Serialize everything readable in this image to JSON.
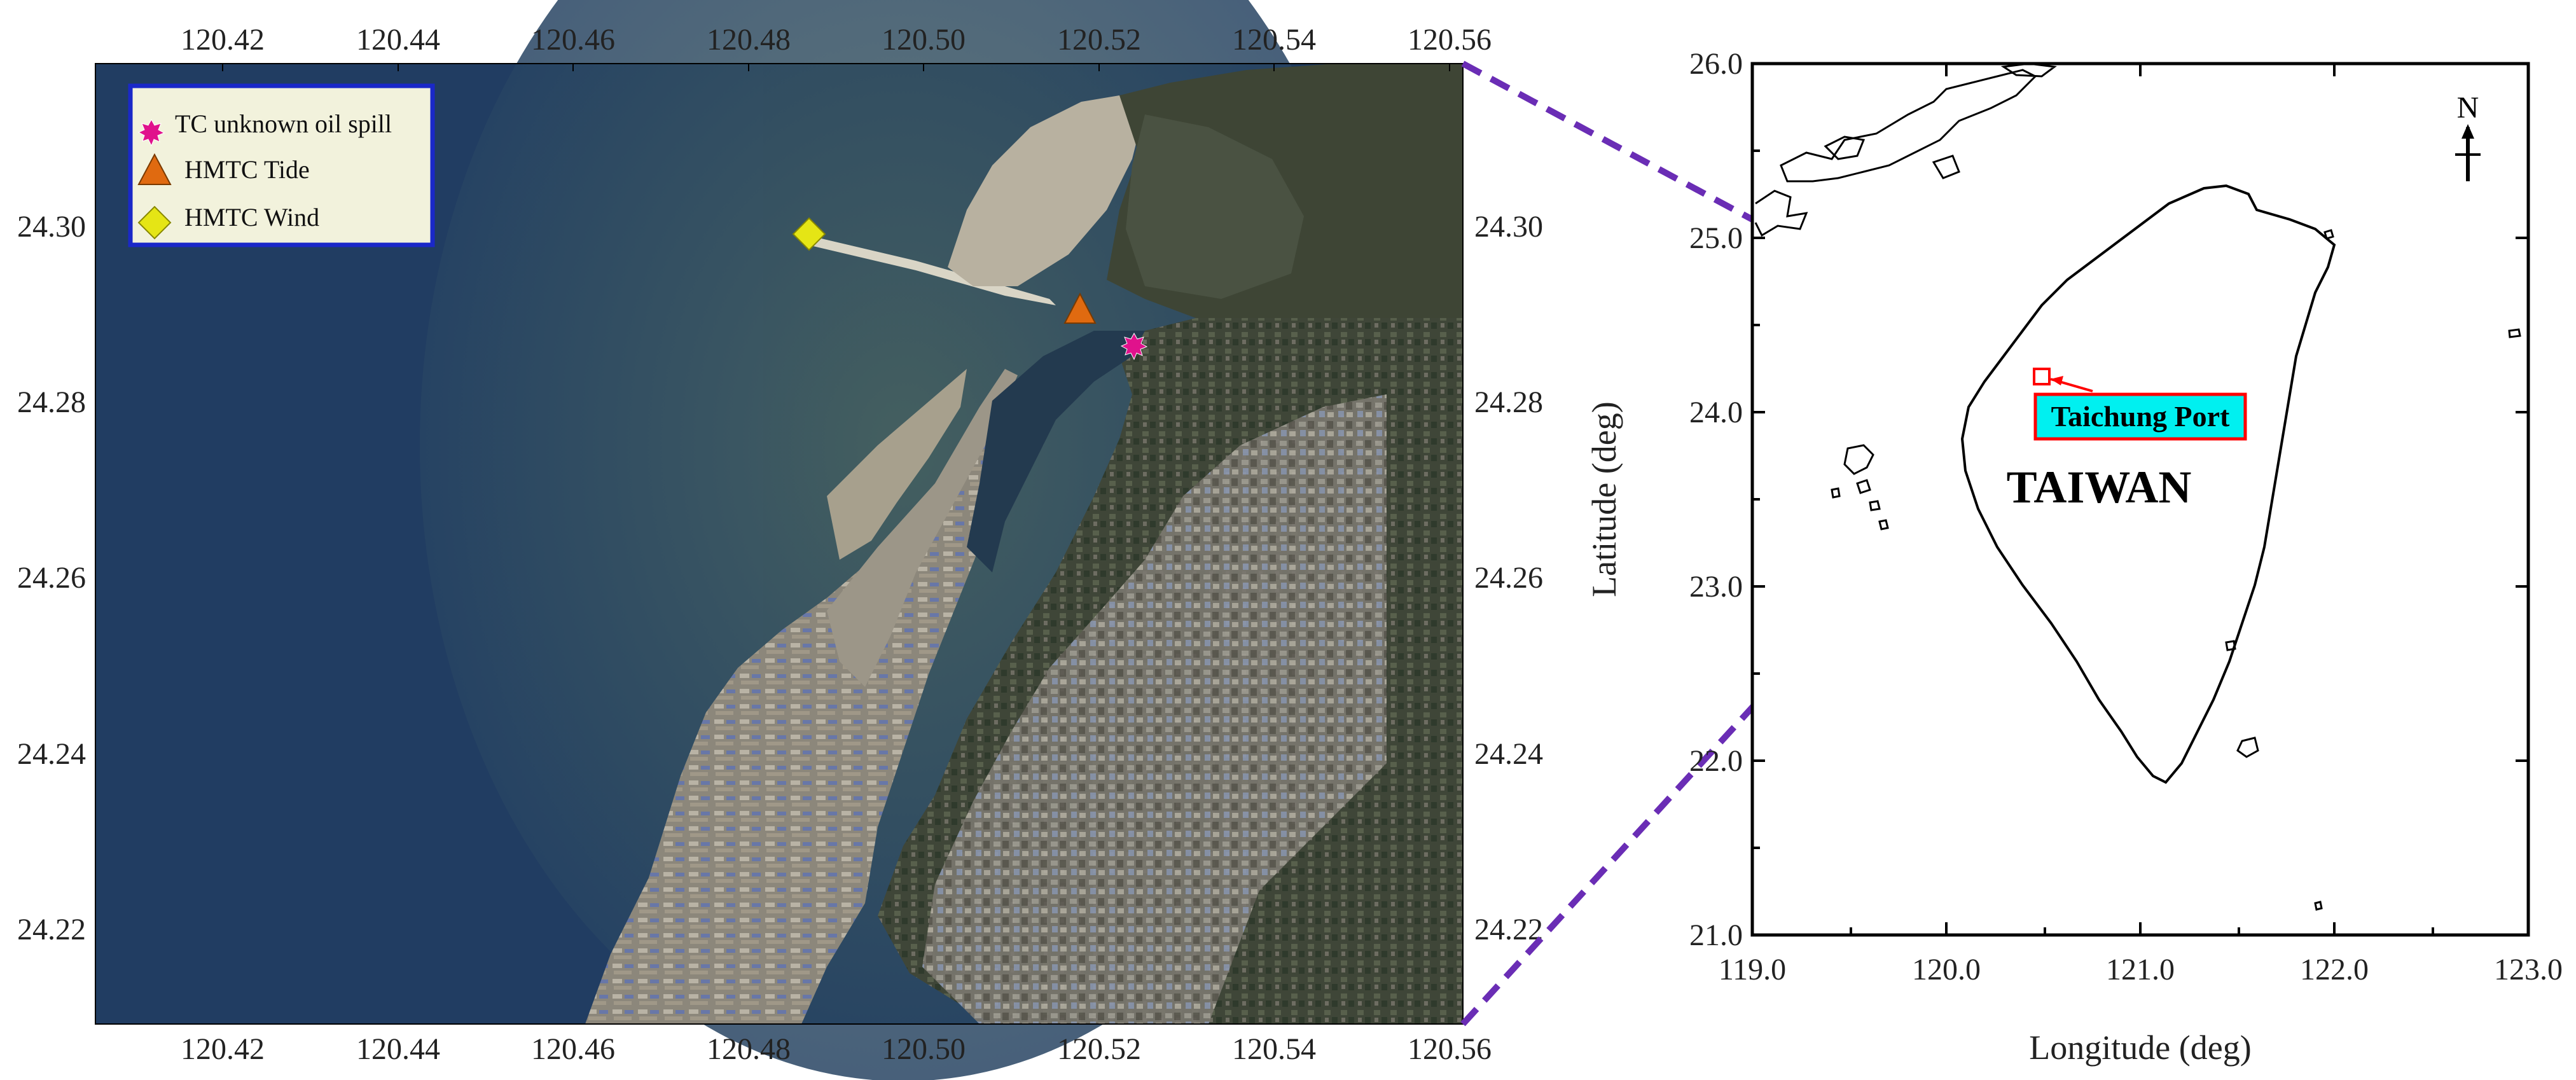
{
  "colors": {
    "sea": "#1f3a5c",
    "land": "#5a5647",
    "callout_line": "#6a2db5",
    "oil_spill_marker": "#e0128c",
    "tide_marker": "#e06a10",
    "wind_marker": "#e5e515",
    "port_box_fill": "#00f0f0",
    "port_box_border": "#ff0000",
    "legend_fill": "#f2f2dc",
    "legend_border": "#1a28c8"
  },
  "satellite_map": {
    "top_ticks": [
      "120.42",
      "120.44",
      "120.46",
      "120.48",
      "120.50",
      "120.52",
      "120.54",
      "120.56"
    ],
    "bottom_ticks": [
      "120.42",
      "120.44",
      "120.46",
      "120.48",
      "120.50",
      "120.52",
      "120.54",
      "120.56"
    ],
    "left_ticks": [
      "24.30",
      "24.28",
      "24.26",
      "24.24",
      "24.22"
    ],
    "right_ticks": [
      "24.30",
      "24.28",
      "24.26",
      "24.24",
      "24.22"
    ],
    "legend": [
      {
        "label": "TC unknown oil spill",
        "icon": "starburst-icon"
      },
      {
        "label": "HMTC Tide",
        "icon": "triangle-icon"
      },
      {
        "label": "HMTC Wind",
        "icon": "diamond-icon"
      }
    ],
    "markers": [
      {
        "name": "HMTC Wind",
        "lon": 120.487,
        "lat": 24.2995
      },
      {
        "name": "HMTC Tide",
        "lon": 120.518,
        "lat": 24.2905
      },
      {
        "name": "TC unknown oil spill",
        "lon": 120.524,
        "lat": 24.2865
      }
    ]
  },
  "overview_map": {
    "x_ticks": [
      "119.0",
      "120.0",
      "121.0",
      "122.0",
      "123.0"
    ],
    "y_ticks": [
      "26.0",
      "25.0",
      "24.0",
      "23.0",
      "22.0",
      "21.0"
    ],
    "x_label": "Longitude (deg)",
    "y_label": "Latitude (deg)",
    "xlim": [
      119.0,
      123.0
    ],
    "ylim": [
      21.0,
      26.0
    ],
    "port_label": "Taichung Port",
    "country_label": "TAIWAN",
    "north_label": "N",
    "port_location": {
      "lon": 120.5,
      "lat": 24.2
    }
  }
}
